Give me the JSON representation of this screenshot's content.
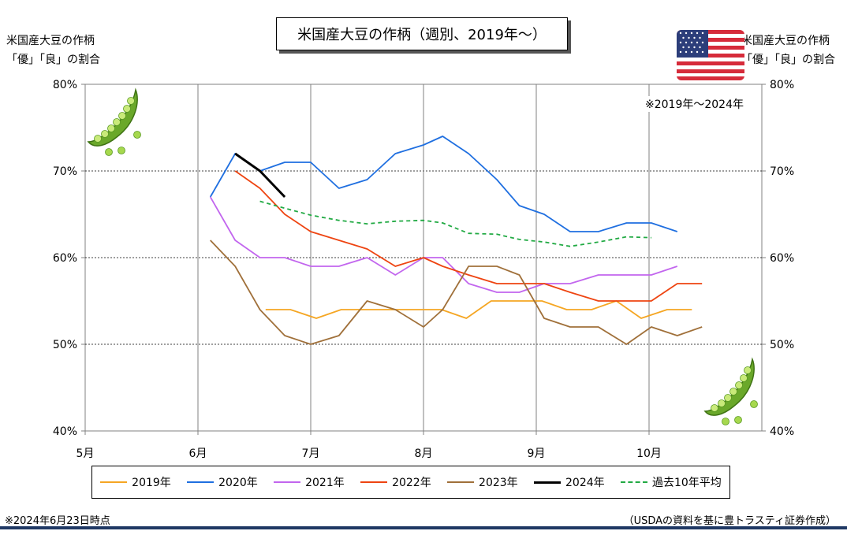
{
  "title": "米国産大豆の作柄（週別、2019年～）",
  "left_axis_label": [
    "米国産大豆の作柄",
    "「優」「良」の割合"
  ],
  "right_axis_label": [
    "米国産大豆の作柄",
    "「優」「良」の割合"
  ],
  "note_top": "※2019年～2024年",
  "footnote": "※2024年6月23日時点",
  "source": "（USDAの資料を基に豊トラスティ証券作成）",
  "icons": [
    "us-flag-icon",
    "pea-pod-icon"
  ],
  "chart_data": {
    "type": "line",
    "x_axis": {
      "type": "month",
      "ticks": [
        "5月",
        "6月",
        "7月",
        "8月",
        "9月",
        "10月"
      ],
      "range_months": [
        5,
        11
      ]
    },
    "y_axis": {
      "ticks": [
        "40%",
        "50%",
        "60%",
        "70%",
        "80%"
      ],
      "ylim": [
        40,
        80
      ],
      "unit": "%"
    },
    "grid": {
      "horizontal": true,
      "vertical": true
    },
    "legend_position": "bottom",
    "series": [
      {
        "name": "2019年",
        "color": "#f5a623",
        "style": "solid",
        "x": [
          6.6,
          6.82,
          7.05,
          7.27,
          7.49,
          7.71,
          7.93,
          8.16,
          8.38,
          8.6,
          8.82,
          9.05,
          9.27,
          9.49,
          9.71,
          9.93,
          10.16,
          10.38
        ],
        "y": [
          54,
          54,
          53,
          54,
          54,
          54,
          54,
          54,
          53,
          55,
          55,
          55,
          54,
          54,
          55,
          53,
          54,
          54
        ]
      },
      {
        "name": "2020年",
        "color": "#1f6fe0",
        "style": "solid",
        "x": [
          6.11,
          6.33,
          6.55,
          6.77,
          7.0,
          7.25,
          7.5,
          7.75,
          8.0,
          8.17,
          8.4,
          8.65,
          8.85,
          9.07,
          9.3,
          9.55,
          9.8,
          10.02,
          10.25
        ],
        "y": [
          67,
          72,
          70,
          71,
          71,
          68,
          69,
          72,
          73,
          74,
          72,
          69,
          66,
          65,
          63,
          63,
          64,
          64,
          63
        ]
      },
      {
        "name": "2021年",
        "color": "#c266ee",
        "style": "solid",
        "x": [
          6.11,
          6.33,
          6.55,
          6.77,
          7.0,
          7.25,
          7.5,
          7.75,
          8.0,
          8.17,
          8.4,
          8.65,
          8.85,
          9.07,
          9.3,
          9.55,
          9.8,
          10.02,
          10.25
        ],
        "y": [
          67,
          62,
          60,
          60,
          59,
          59,
          60,
          58,
          60,
          60,
          57,
          56,
          56,
          57,
          57,
          58,
          58,
          58,
          59
        ]
      },
      {
        "name": "2022年",
        "color": "#ee4411",
        "style": "solid",
        "x": [
          6.33,
          6.55,
          6.77,
          7.0,
          7.25,
          7.5,
          7.75,
          8.0,
          8.17,
          8.4,
          8.65,
          8.85,
          9.07,
          9.3,
          9.55,
          9.8,
          10.02,
          10.25,
          10.47
        ],
        "y": [
          70,
          68,
          65,
          63,
          62,
          61,
          59,
          60,
          59,
          58,
          57,
          57,
          57,
          56,
          55,
          55,
          55,
          57,
          57
        ]
      },
      {
        "name": "2023年",
        "color": "#a0703a",
        "style": "solid",
        "x": [
          6.11,
          6.33,
          6.55,
          6.77,
          7.0,
          7.25,
          7.5,
          7.75,
          8.0,
          8.17,
          8.4,
          8.65,
          8.85,
          9.07,
          9.3,
          9.55,
          9.8,
          10.02,
          10.25,
          10.47
        ],
        "y": [
          62,
          59,
          54,
          51,
          50,
          51,
          55,
          54,
          52,
          54,
          59,
          59,
          58,
          53,
          52,
          52,
          50,
          52,
          51,
          52
        ]
      },
      {
        "name": "2024年",
        "color": "#000000",
        "style": "solid-bold",
        "x": [
          6.33,
          6.55,
          6.77
        ],
        "y": [
          72,
          70,
          67
        ]
      },
      {
        "name": "過去10年平均",
        "color": "#22aa44",
        "style": "dashed",
        "x": [
          6.55,
          6.77,
          7.0,
          7.25,
          7.5,
          7.75,
          8.0,
          8.17,
          8.4,
          8.65,
          8.85,
          9.07,
          9.3,
          9.55,
          9.8,
          10.02
        ],
        "y": [
          66.5,
          65.7,
          64.9,
          64.3,
          63.9,
          64.2,
          64.3,
          64.0,
          62.8,
          62.7,
          62.1,
          61.8,
          61.3,
          61.8,
          62.4,
          62.3
        ]
      }
    ]
  }
}
